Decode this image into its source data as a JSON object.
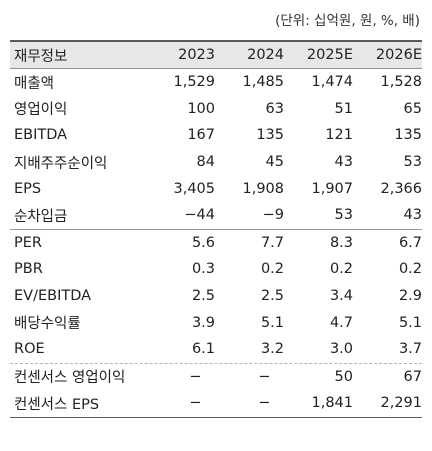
{
  "unit_note": "(단위: 십억원, 원, %, 배)",
  "header": {
    "label": "재무정보",
    "cols": [
      "2023",
      "2024",
      "2025E",
      "2026E"
    ]
  },
  "groups": [
    {
      "rows": [
        {
          "label": "매출액",
          "values": [
            "1,529",
            "1,485",
            "1,474",
            "1,528"
          ]
        },
        {
          "label": "영업이익",
          "values": [
            "100",
            "63",
            "51",
            "65"
          ]
        },
        {
          "label": "EBITDA",
          "values": [
            "167",
            "135",
            "121",
            "135"
          ]
        },
        {
          "label": "지배주주순이익",
          "values": [
            "84",
            "45",
            "43",
            "53"
          ]
        },
        {
          "label": "EPS",
          "values": [
            "3,405",
            "1,908",
            "1,907",
            "2,366"
          ]
        },
        {
          "label": "순차입금",
          "values": [
            "−44",
            "−9",
            "53",
            "43"
          ]
        }
      ]
    },
    {
      "rows": [
        {
          "label": "PER",
          "values": [
            "5.6",
            "7.7",
            "8.3",
            "6.7"
          ]
        },
        {
          "label": "PBR",
          "values": [
            "0.3",
            "0.2",
            "0.2",
            "0.2"
          ]
        },
        {
          "label": "EV/EBITDA",
          "values": [
            "2.5",
            "2.5",
            "3.4",
            "2.9"
          ]
        },
        {
          "label": "배당수익률",
          "values": [
            "3.9",
            "5.1",
            "4.7",
            "5.1"
          ]
        },
        {
          "label": "ROE",
          "values": [
            "6.1",
            "3.2",
            "3.0",
            "3.7"
          ]
        }
      ]
    },
    {
      "rows": [
        {
          "label": "컨센서스 영업이익",
          "values": [
            "−",
            "−",
            "50",
            "67"
          ]
        },
        {
          "label": "컨센서스 EPS",
          "values": [
            "−",
            "−",
            "1,841",
            "2,291"
          ]
        }
      ]
    }
  ]
}
